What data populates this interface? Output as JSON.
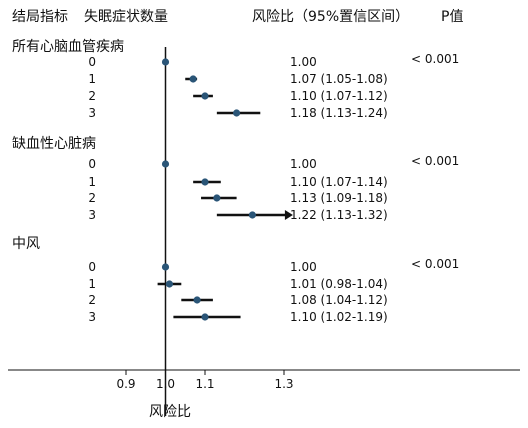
{
  "header": {
    "col_outcome": "结局指标",
    "col_symptoms": "失眠症状数量",
    "col_hr": "风险比（95%置信区间）",
    "col_p": "P值"
  },
  "chart_data": {
    "type": "forest",
    "xlabel": "风险比",
    "xlim": [
      0.8,
      1.52
    ],
    "xticks": [
      {
        "value": 0.9,
        "label": "0.9"
      },
      {
        "value": 1.0,
        "label": "1.0"
      },
      {
        "value": 1.1,
        "label": "1.1"
      },
      {
        "value": 1.3,
        "label": "1.3"
      }
    ],
    "reference_line": 1.0,
    "marker_color": "#2a5577",
    "groups": [
      {
        "name": "所有心脑血管疾病",
        "p_value": "< 0.001",
        "rows": [
          {
            "label": "0",
            "hr": 1.0,
            "lo": 1.0,
            "hi": 1.0,
            "ci_text": "1.00"
          },
          {
            "label": "1",
            "hr": 1.07,
            "lo": 1.05,
            "hi": 1.08,
            "ci_text": "1.07 (1.05-1.08)"
          },
          {
            "label": "2",
            "hr": 1.1,
            "lo": 1.07,
            "hi": 1.12,
            "ci_text": "1.10 (1.07-1.12)"
          },
          {
            "label": "3",
            "hr": 1.18,
            "lo": 1.13,
            "hi": 1.24,
            "ci_text": "1.18 (1.13-1.24)"
          }
        ]
      },
      {
        "name": "缺血性心脏病",
        "p_value": "< 0.001",
        "rows": [
          {
            "label": "0",
            "hr": 1.0,
            "lo": 1.0,
            "hi": 1.0,
            "ci_text": "1.00"
          },
          {
            "label": "1",
            "hr": 1.1,
            "lo": 1.07,
            "hi": 1.14,
            "ci_text": "1.10 (1.07-1.14)"
          },
          {
            "label": "2",
            "hr": 1.13,
            "lo": 1.09,
            "hi": 1.18,
            "ci_text": "1.13 (1.09-1.18)"
          },
          {
            "label": "3",
            "hr": 1.22,
            "lo": 1.13,
            "hi": 1.32,
            "ci_text": "1.22 (1.13-1.32)",
            "arrow": true
          }
        ]
      },
      {
        "name": "中风",
        "p_value": "< 0.001",
        "rows": [
          {
            "label": "0",
            "hr": 1.0,
            "lo": 1.0,
            "hi": 1.0,
            "ci_text": "1.00"
          },
          {
            "label": "1",
            "hr": 1.01,
            "lo": 0.98,
            "hi": 1.04,
            "ci_text": "1.01 (0.98-1.04)"
          },
          {
            "label": "2",
            "hr": 1.08,
            "lo": 1.04,
            "hi": 1.12,
            "ci_text": "1.08 (1.04-1.12)"
          },
          {
            "label": "3",
            "hr": 1.1,
            "lo": 1.02,
            "hi": 1.19,
            "ci_text": "1.10 (1.02-1.19)"
          }
        ]
      }
    ]
  }
}
